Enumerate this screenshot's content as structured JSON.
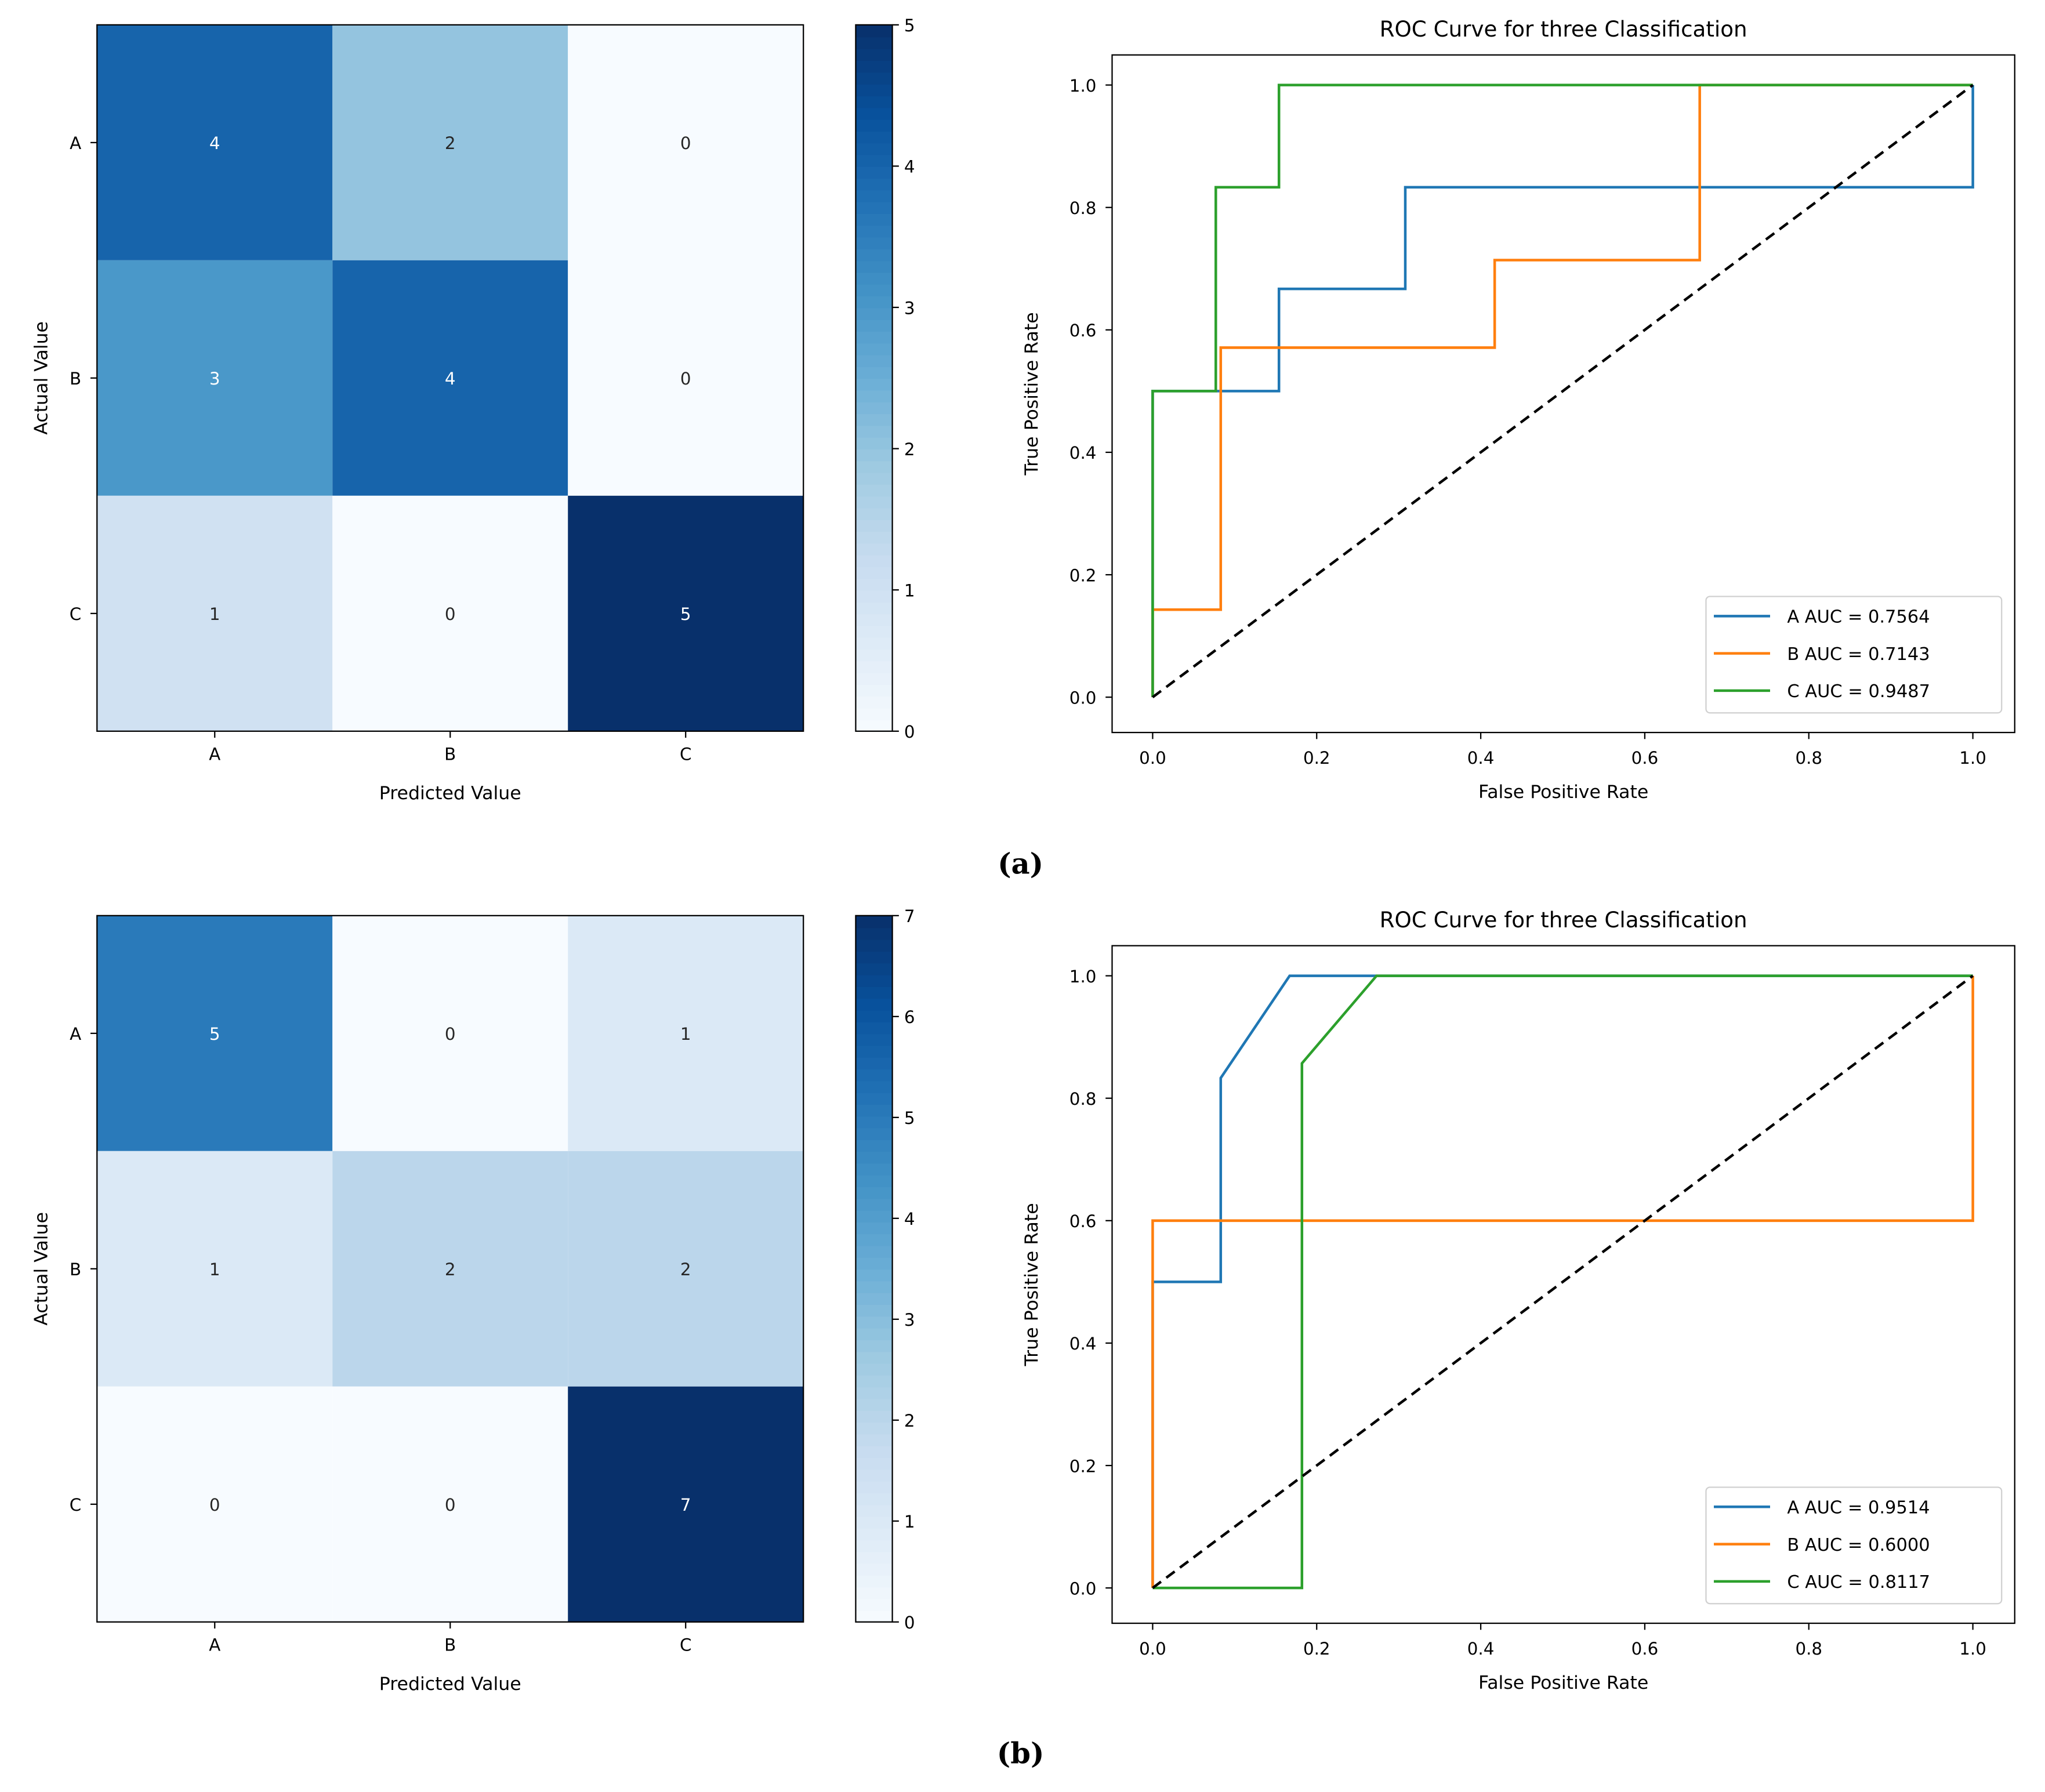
{
  "chart_data": [
    {
      "type": "heatmap",
      "panel": "a",
      "xlabel": "Predicted Value",
      "ylabel": "Actual Value",
      "x_categories": [
        "A",
        "B",
        "C"
      ],
      "y_categories": [
        "A",
        "B",
        "C"
      ],
      "values": [
        [
          4,
          2,
          0
        ],
        [
          3,
          4,
          0
        ],
        [
          1,
          0,
          5
        ]
      ],
      "colormap": "Blues",
      "colorbar_range": [
        0,
        5
      ],
      "colorbar_ticks": [
        "0",
        "1",
        "2",
        "3",
        "4",
        "5"
      ]
    },
    {
      "type": "line",
      "panel": "a",
      "title": "ROC Curve for three Classification",
      "xlabel": "False Positive Rate",
      "ylabel": "True Positive Rate",
      "xlim": [
        -0.05,
        1.05
      ],
      "ylim": [
        -0.05,
        1.05
      ],
      "xticks": [
        "0.0",
        "0.2",
        "0.4",
        "0.6",
        "0.8",
        "1.0"
      ],
      "yticks": [
        "0.0",
        "0.2",
        "0.4",
        "0.6",
        "0.8",
        "1.0"
      ],
      "legend_position": "bottom-right",
      "series": [
        {
          "name": "A AUC = 0.7564",
          "color": "#1f77b4",
          "x": [
            0,
            0,
            0.154,
            0.154,
            0.308,
            0.308,
            1,
            1
          ],
          "y": [
            0,
            0.5,
            0.5,
            0.667,
            0.667,
            0.833,
            0.833,
            1
          ]
        },
        {
          "name": "B AUC = 0.7143",
          "color": "#ff7f0e",
          "x": [
            0,
            0,
            0.083,
            0.083,
            0.417,
            0.417,
            0.667,
            0.667,
            1
          ],
          "y": [
            0,
            0.143,
            0.143,
            0.571,
            0.571,
            0.714,
            0.714,
            1,
            1
          ]
        },
        {
          "name": "C AUC = 0.9487",
          "color": "#2ca02c",
          "x": [
            0,
            0,
            0.077,
            0.077,
            0.154,
            0.154,
            1
          ],
          "y": [
            0,
            0.5,
            0.5,
            0.833,
            0.833,
            1,
            1
          ]
        }
      ],
      "diagonal": {
        "x": [
          0,
          1
        ],
        "y": [
          0,
          1
        ],
        "color": "#000000",
        "style": "dashed"
      }
    },
    {
      "type": "heatmap",
      "panel": "b",
      "xlabel": "Predicted Value",
      "ylabel": "Actual Value",
      "x_categories": [
        "A",
        "B",
        "C"
      ],
      "y_categories": [
        "A",
        "B",
        "C"
      ],
      "values": [
        [
          5,
          0,
          1
        ],
        [
          1,
          2,
          2
        ],
        [
          0,
          0,
          7
        ]
      ],
      "colormap": "Blues",
      "colorbar_range": [
        0,
        7
      ],
      "colorbar_ticks": [
        "0",
        "1",
        "2",
        "3",
        "4",
        "5",
        "6",
        "7"
      ]
    },
    {
      "type": "line",
      "panel": "b",
      "title": "ROC Curve for three Classification",
      "xlabel": "False Positive Rate",
      "ylabel": "True Positive Rate",
      "xlim": [
        -0.05,
        1.05
      ],
      "ylim": [
        -0.05,
        1.05
      ],
      "xticks": [
        "0.0",
        "0.2",
        "0.4",
        "0.6",
        "0.8",
        "1.0"
      ],
      "yticks": [
        "0.0",
        "0.2",
        "0.4",
        "0.6",
        "0.8",
        "1.0"
      ],
      "legend_position": "bottom-right",
      "series": [
        {
          "name": "A AUC = 0.9514",
          "color": "#1f77b4",
          "x": [
            0,
            0,
            0.083,
            0.083,
            0.167,
            1
          ],
          "y": [
            0,
            0.5,
            0.5,
            0.833,
            1,
            1
          ]
        },
        {
          "name": "B AUC = 0.6000",
          "color": "#ff7f0e",
          "x": [
            0,
            0,
            1,
            1
          ],
          "y": [
            0,
            0.6,
            0.6,
            1
          ]
        },
        {
          "name": "C AUC = 0.8117",
          "color": "#2ca02c",
          "x": [
            0,
            0.182,
            0.182,
            0.273,
            1
          ],
          "y": [
            0,
            0,
            0.857,
            1,
            1
          ]
        }
      ],
      "diagonal": {
        "x": [
          0,
          1
        ],
        "y": [
          0,
          1
        ],
        "color": "#000000",
        "style": "dashed"
      }
    }
  ],
  "panel_labels": [
    "(a)",
    "(b)"
  ]
}
